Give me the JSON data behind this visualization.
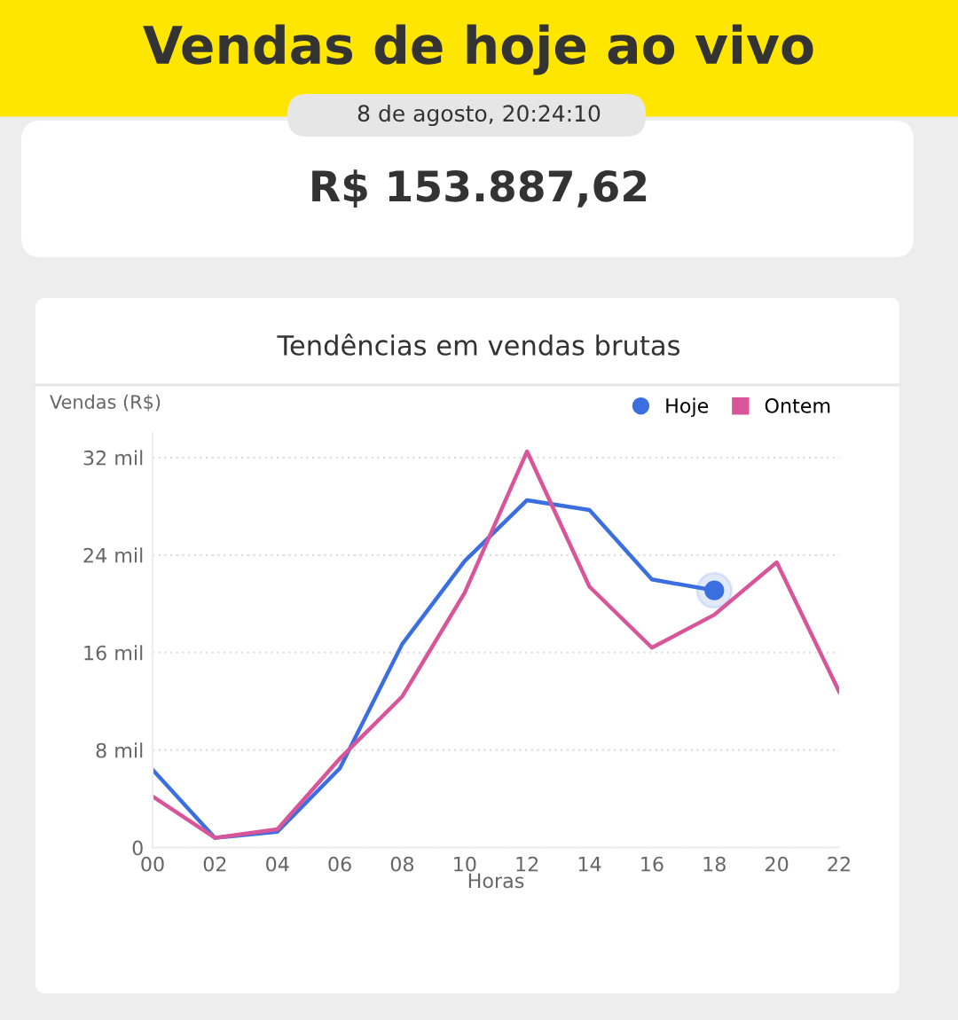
{
  "chart_data": {
    "type": "line",
    "title": "Tendências em vendas brutas",
    "subtitle": "Vendas de hoje ao vivo",
    "annotations": [
      "8 de agosto, 20:24:10",
      "R$ 153.887,62"
    ],
    "xlabel": "Horas",
    "ylabel": "Vendas (R$)",
    "x": [
      0,
      2,
      4,
      6,
      8,
      10,
      12,
      14,
      16,
      18,
      20,
      22
    ],
    "series": [
      {
        "name": "Hoje",
        "color": "#3b6fe0",
        "values": [
          6.4,
          0.8,
          1.3,
          6.5,
          16.7,
          23.5,
          28.5,
          27.7,
          22.0,
          21.1,
          null,
          null
        ]
      },
      {
        "name": "Ontem",
        "color": "#d9559a",
        "values": [
          4.2,
          0.8,
          1.5,
          7.3,
          12.4,
          20.9,
          32.5,
          21.4,
          16.4,
          19.1,
          23.4,
          12.8
        ]
      }
    ],
    "xlim": [
      0,
      22
    ],
    "xticks": [
      {
        "value": 0,
        "label": "00"
      },
      {
        "value": 2,
        "label": "02"
      },
      {
        "value": 4,
        "label": "04"
      },
      {
        "value": 6,
        "label": "06"
      },
      {
        "value": 8,
        "label": "08"
      },
      {
        "value": 10,
        "label": "10"
      },
      {
        "value": 12,
        "label": "12"
      },
      {
        "value": 14,
        "label": "14"
      },
      {
        "value": 16,
        "label": "16"
      },
      {
        "value": 18,
        "label": "18"
      },
      {
        "value": 20,
        "label": "20"
      },
      {
        "value": 22,
        "label": "22"
      }
    ],
    "ylim": [
      0,
      34
    ],
    "yticks": [
      0,
      {
        "value": 8,
        "label": "8 mil"
      },
      {
        "value": 16,
        "label": "16 mil"
      },
      {
        "value": 24,
        "label": "24 mil"
      },
      {
        "value": 32,
        "label": "32 mil"
      }
    ],
    "grid": "y",
    "legend": "top right",
    "line_style": "solid"
  }
}
